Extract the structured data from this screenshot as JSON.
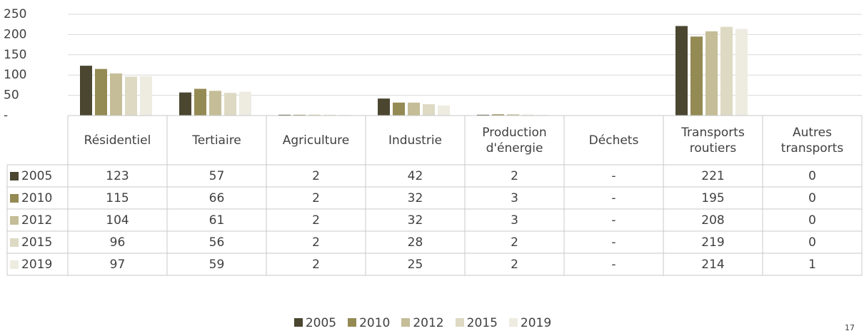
{
  "chart_data": {
    "type": "bar",
    "categories": [
      "Résidentiel",
      "Tertiaire",
      "Agriculture",
      "Industrie",
      "Production d'énergie",
      "Déchets",
      "Transports routiers",
      "Autres transports"
    ],
    "series": [
      {
        "name": "2005",
        "color": "#4a4630",
        "values": [
          123,
          57,
          2,
          42,
          2,
          0,
          221,
          0
        ],
        "value_labels": [
          "123",
          "57",
          "2",
          "42",
          "2",
          "-",
          "221",
          "0"
        ]
      },
      {
        "name": "2010",
        "color": "#948a54",
        "values": [
          115,
          66,
          2,
          32,
          3,
          0,
          195,
          0
        ],
        "value_labels": [
          "115",
          "66",
          "2",
          "32",
          "3",
          "-",
          "195",
          "0"
        ]
      },
      {
        "name": "2012",
        "color": "#c4bd97",
        "values": [
          104,
          61,
          2,
          32,
          3,
          0,
          208,
          0
        ],
        "value_labels": [
          "104",
          "61",
          "2",
          "32",
          "3",
          "-",
          "208",
          "0"
        ]
      },
      {
        "name": "2015",
        "color": "#ddd9c3",
        "values": [
          96,
          56,
          2,
          28,
          2,
          0,
          219,
          0
        ],
        "value_labels": [
          "96",
          "56",
          "2",
          "28",
          "2",
          "-",
          "219",
          "0"
        ]
      },
      {
        "name": "2019",
        "color": "#eeece1",
        "values": [
          97,
          59,
          2,
          25,
          2,
          0,
          214,
          1
        ],
        "value_labels": [
          "97",
          "59",
          "2",
          "25",
          "2",
          "-",
          "214",
          "1"
        ]
      }
    ],
    "ylim": [
      0,
      250
    ],
    "yticks": [
      {
        "value": 0,
        "label": "-"
      },
      50,
      100,
      150,
      200,
      250
    ],
    "grid": true,
    "legend": "bottom"
  },
  "page_number": "17"
}
